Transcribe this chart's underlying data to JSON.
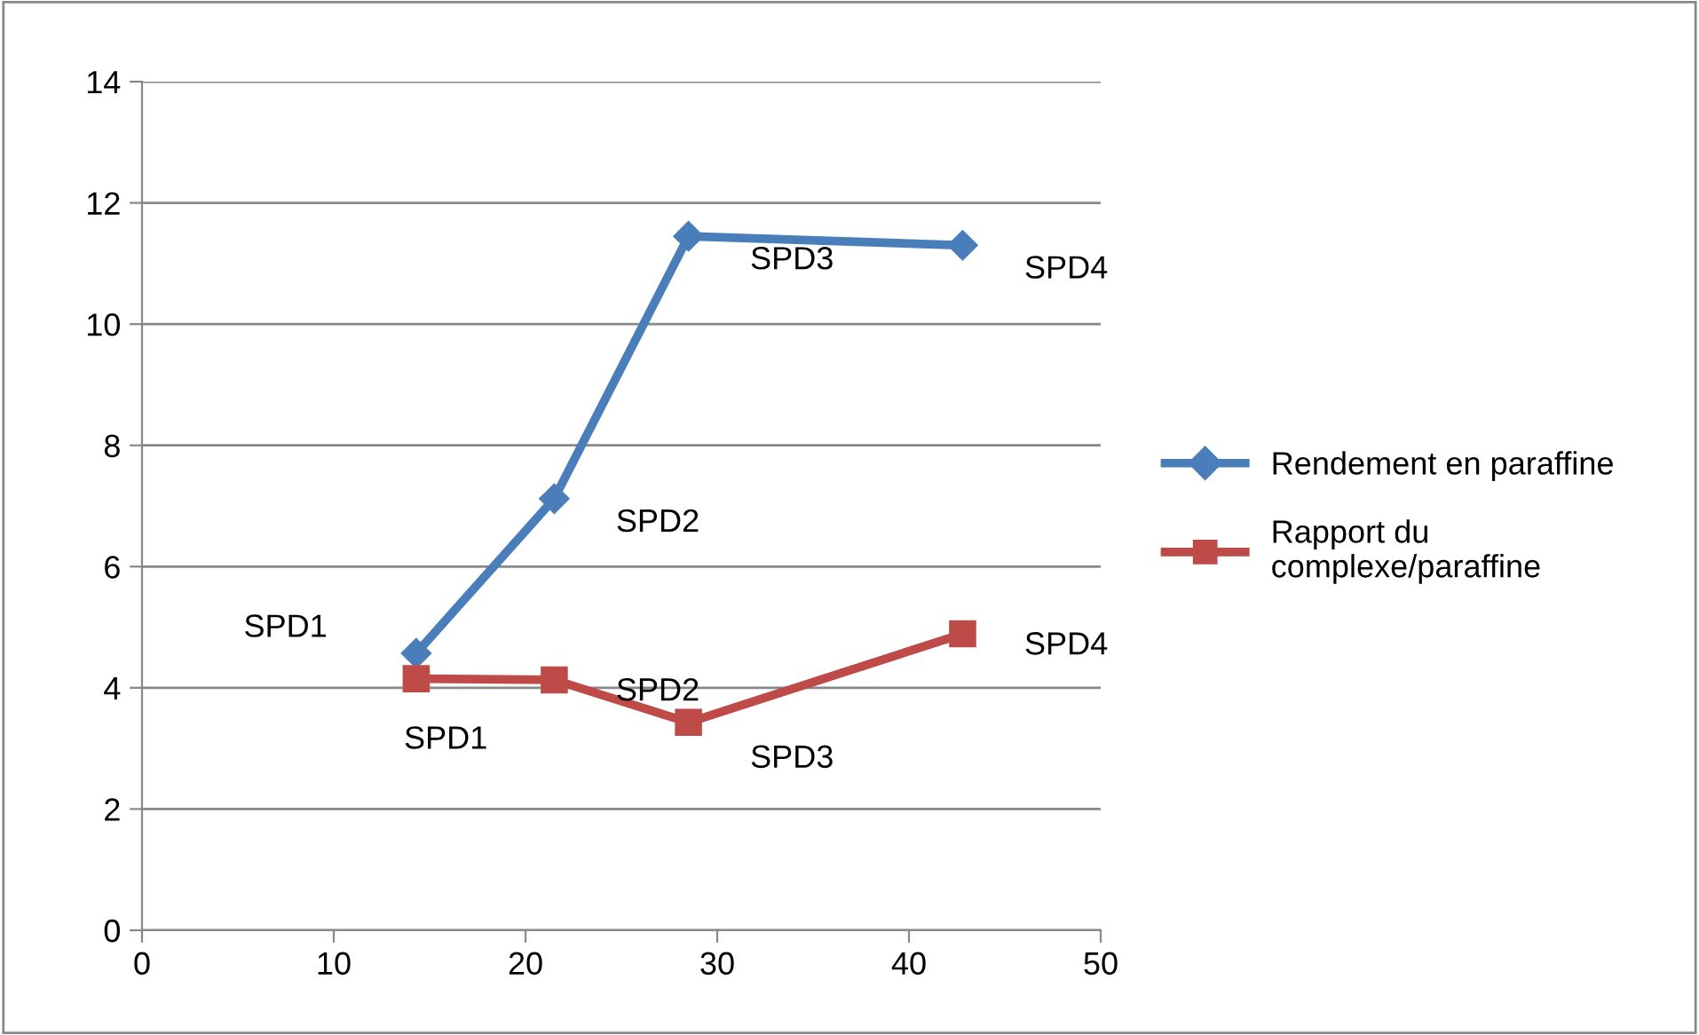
{
  "chart_data": {
    "type": "line",
    "xlim": [
      0,
      50
    ],
    "xticks": [
      0,
      10,
      20,
      30,
      40,
      50
    ],
    "ylim": [
      0,
      14
    ],
    "yticks": [
      0,
      2,
      4,
      6,
      8,
      10,
      12,
      14
    ],
    "grid": "y",
    "legend": "right",
    "line_style": "solid",
    "series": [
      {
        "name": "Rendement en paraffine",
        "color": "#4a7ebb",
        "marker": "diamond",
        "x": [
          14.3,
          21.5,
          28.5,
          42.8
        ],
        "values": [
          4.57,
          7.12,
          11.45,
          11.3
        ]
      },
      {
        "name": "Rapport du complexe/paraffine",
        "color": "#be4b48",
        "marker": "square",
        "x": [
          14.3,
          21.5,
          28.5,
          42.8
        ],
        "values": [
          4.15,
          4.13,
          3.43,
          4.89
        ]
      }
    ],
    "annotations": [
      {
        "text": "SPD1",
        "x": 14.3,
        "y": 4.57
      },
      {
        "text": "SPD2",
        "x": 21.5,
        "y": 7.12
      },
      {
        "text": "SPD3",
        "x": 28.5,
        "y": 11.45
      },
      {
        "text": "SPD4",
        "x": 42.8,
        "y": 11.3
      },
      {
        "text": "SPD1",
        "x": 14.3,
        "y": 4.15
      },
      {
        "text": "SPD2",
        "x": 21.5,
        "y": 4.13
      },
      {
        "text": "SPD3",
        "x": 28.5,
        "y": 3.43
      },
      {
        "text": "SPD4",
        "x": 42.8,
        "y": 4.89
      }
    ]
  }
}
